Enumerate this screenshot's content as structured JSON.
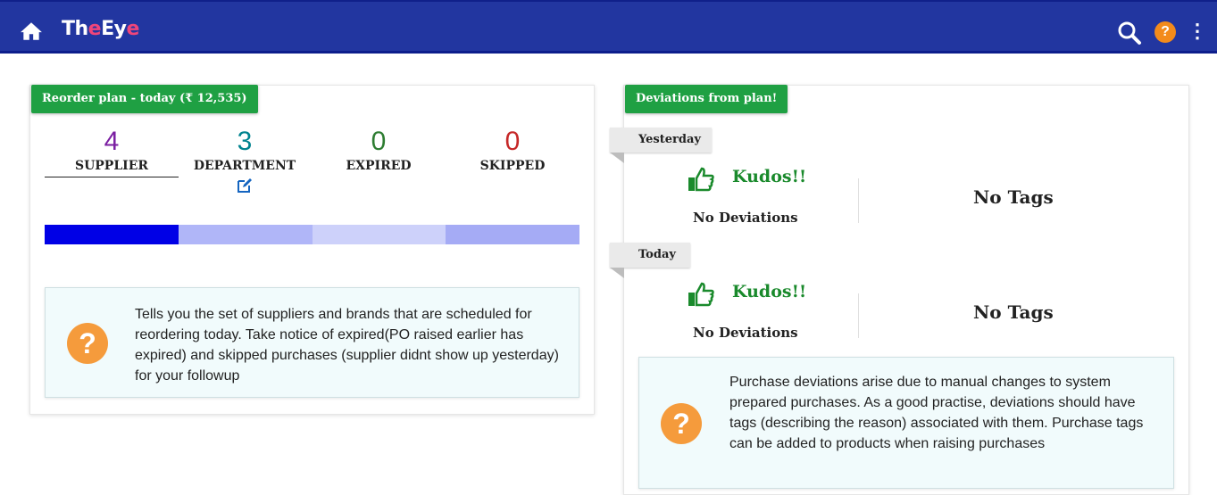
{
  "header": {
    "logo_main": "Th",
    "logo_e": "e",
    "logo_ey": "Ey",
    "logo_e2": "e",
    "help_label": "?",
    "menu_label": "⋮"
  },
  "reorder": {
    "title": "Reorder plan - today (₹ 12,535)",
    "stats": [
      {
        "value": "4",
        "label": "SUPPLIER",
        "color": "#7b1fa2"
      },
      {
        "value": "3",
        "label": "DEPARTMENT",
        "color": "#00838f"
      },
      {
        "value": "0",
        "label": "EXPIRED",
        "color": "#2e7d32"
      },
      {
        "value": "0",
        "label": "SKIPPED",
        "color": "#c62828"
      }
    ],
    "active_tab": "SUPPLIER",
    "info": "Tells you the set of suppliers and brands that are scheduled for reordering today. Take notice of expired(PO raised earlier has expired) and skipped purchases (supplier didnt show up yesterday) for your followup"
  },
  "deviations": {
    "title": "Deviations from plan!",
    "days": [
      {
        "label": "Yesterday",
        "kudos": "Kudos!!",
        "status": "No Deviations",
        "tags": "No Tags"
      },
      {
        "label": "Today",
        "kudos": "Kudos!!",
        "status": "No Deviations",
        "tags": "No Tags"
      }
    ],
    "info": "Purchase deviations arise due to manual changes to system prepared purchases. As a good practise, deviations should have tags (describing the reason) associated with them. Purchase tags can be added to products when raising purchases"
  },
  "colors": {
    "header": "#2236a0",
    "tab": "#1fa043",
    "help": "#f59b3c"
  }
}
